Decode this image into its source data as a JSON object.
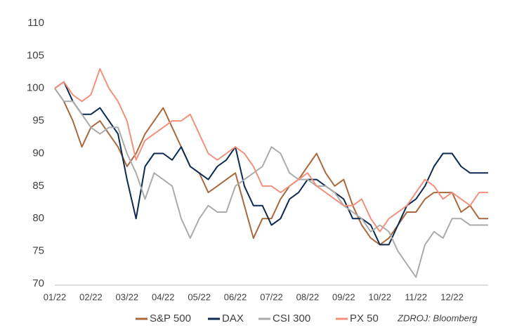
{
  "chart_data": {
    "type": "line",
    "categories": [
      "01/22",
      null,
      null,
      null,
      "02/22",
      null,
      null,
      null,
      "03/22",
      null,
      null,
      null,
      "04/22",
      null,
      null,
      null,
      "05/22",
      null,
      null,
      null,
      "06/22",
      null,
      null,
      null,
      "07/22",
      null,
      null,
      null,
      "08/22",
      null,
      null,
      null,
      "09/22",
      null,
      null,
      null,
      "10/22",
      null,
      null,
      null,
      "11/22",
      null,
      null,
      null,
      "12/22",
      null,
      null,
      null,
      null
    ],
    "series": [
      {
        "name": "S&P 500",
        "color": "#a9693d",
        "values": [
          100,
          98,
          95,
          91,
          94,
          95,
          93,
          91,
          88,
          90,
          93,
          95,
          97,
          94,
          91,
          88,
          87,
          84,
          85,
          86,
          87,
          82,
          77,
          80,
          80,
          83,
          85,
          86,
          88,
          90,
          87,
          85,
          86,
          82,
          79,
          77,
          76,
          77,
          79,
          81,
          81,
          83,
          84,
          84,
          84,
          81,
          82,
          80,
          80
        ]
      },
      {
        "name": "DAX",
        "color": "#0c2a52",
        "values": [
          100,
          101,
          98,
          96,
          96,
          97,
          95,
          93,
          86,
          80,
          88,
          90,
          90,
          89,
          91,
          88,
          87,
          86,
          88,
          89,
          91,
          85,
          82,
          82,
          79,
          80,
          83,
          84,
          86,
          86,
          85,
          84,
          83,
          80,
          80,
          79,
          76,
          76,
          79,
          82,
          83,
          85,
          88,
          90,
          90,
          88,
          87,
          87,
          87
        ]
      },
      {
        "name": "CSI 300",
        "color": "#ababab",
        "values": [
          100,
          98,
          98,
          96,
          94,
          93,
          94,
          94,
          90,
          87,
          83,
          87,
          86,
          85,
          80,
          77,
          80,
          82,
          81,
          81,
          85,
          86,
          87,
          88,
          91,
          90,
          87,
          86,
          86,
          85,
          85,
          84,
          82,
          81,
          80,
          78,
          79,
          78,
          75,
          73,
          71,
          76,
          78,
          77,
          80,
          80,
          79,
          79,
          79
        ]
      },
      {
        "name": "PX 50",
        "color": "#f2917b",
        "values": [
          100,
          101,
          99,
          98,
          99,
          103,
          100,
          98,
          95,
          89,
          92,
          93,
          94,
          95,
          95,
          96,
          93,
          90,
          89,
          90,
          91,
          90,
          88,
          85,
          85,
          84,
          85,
          86,
          87,
          85,
          84,
          83,
          82,
          82,
          83,
          80,
          78,
          80,
          81,
          82,
          84,
          86,
          85,
          83,
          84,
          83,
          82,
          84,
          84
        ]
      }
    ],
    "ylim": [
      70,
      110
    ],
    "yticks": [
      70,
      75,
      80,
      85,
      90,
      95,
      100,
      105,
      110
    ],
    "grid": false,
    "legend": "bottom",
    "annotation": "ZDROJ: Bloomberg"
  }
}
